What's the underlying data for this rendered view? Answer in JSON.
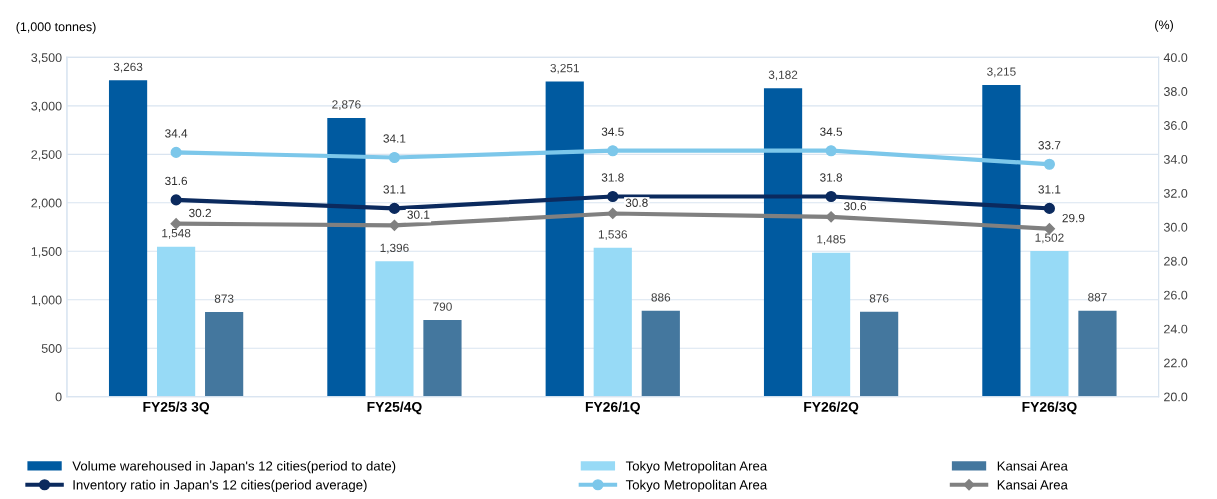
{
  "chart_data": {
    "type": "bar",
    "categories": [
      "FY25/3 3Q",
      "FY25/4Q",
      "FY26/1Q",
      "FY26/2Q",
      "FY26/3Q"
    ],
    "ylabel": "(1,000 tonnes)",
    "y2label": "(%)",
    "ylim": [
      0,
      3500
    ],
    "yticks": [
      {
        "value": 0,
        "label": "0"
      },
      {
        "value": 500,
        "label": "500"
      },
      {
        "value": 1000,
        "label": "1,000"
      },
      {
        "value": 1500,
        "label": "1,500"
      },
      {
        "value": 2000,
        "label": "2,000"
      },
      {
        "value": 2500,
        "label": "2,500"
      },
      {
        "value": 3000,
        "label": "3,000"
      },
      {
        "value": 3500,
        "label": "3,500"
      }
    ],
    "y2lim": [
      20,
      40
    ],
    "y2ticks": [
      {
        "value": 20,
        "label": "20.0"
      },
      {
        "value": 22,
        "label": "22.0"
      },
      {
        "value": 24,
        "label": "24.0"
      },
      {
        "value": 26,
        "label": "26.0"
      },
      {
        "value": 28,
        "label": "28.0"
      },
      {
        "value": 30,
        "label": "30.0"
      },
      {
        "value": 32,
        "label": "32.0"
      },
      {
        "value": 34,
        "label": "34.0"
      },
      {
        "value": 36,
        "label": "36.0"
      },
      {
        "value": 38,
        "label": "38.0"
      },
      {
        "value": 40,
        "label": "40.0"
      }
    ],
    "grid": "y",
    "legend": "bottom",
    "series": [
      {
        "name": "Volume warehoused in Japan's 12 cities(period to date)",
        "color": "#005aa0",
        "values": [
          3263,
          2876,
          3251,
          3182,
          3215
        ],
        "value_labels": [
          "3,263",
          "2,876",
          "3,251",
          "3,182",
          "3,215"
        ]
      },
      {
        "name": "Inventory ratio in Japan's 12 cities(period average)",
        "type": "line",
        "axis": "y2",
        "marker": "circle",
        "color": "#0b2a5e",
        "values": [
          31.6,
          31.1,
          31.8,
          31.8,
          31.1
        ],
        "value_labels": [
          "31.6",
          "31.1",
          "31.8",
          "31.8",
          "31.1"
        ]
      },
      {
        "name": "Tokyo Metropolitan Area",
        "color": "#97daf6",
        "values": [
          1548,
          1396,
          1536,
          1485,
          1502
        ],
        "value_labels": [
          "1,548",
          "1,396",
          "1,536",
          "1,485",
          "1,502"
        ]
      },
      {
        "name": "Tokyo Metropolitan Area",
        "type": "line",
        "axis": "y2",
        "marker": "circle",
        "color": "#7cc7ea",
        "values": [
          34.4,
          34.1,
          34.5,
          34.5,
          33.7
        ],
        "value_labels": [
          "34.4",
          "34.1",
          "34.5",
          "34.5",
          "33.7"
        ]
      },
      {
        "name": "Kansai Area",
        "color": "#44779e",
        "values": [
          873,
          790,
          886,
          876,
          887
        ],
        "value_labels": [
          "873",
          "790",
          "886",
          "876",
          "887"
        ]
      },
      {
        "name": "Kansai Area",
        "type": "line",
        "axis": "y2",
        "marker": "diamond",
        "color": "#808080",
        "values": [
          30.2,
          30.1,
          30.8,
          30.6,
          29.9
        ],
        "value_labels": [
          "30.2",
          "30.1",
          "30.8",
          "30.6",
          "29.9"
        ]
      }
    ]
  }
}
